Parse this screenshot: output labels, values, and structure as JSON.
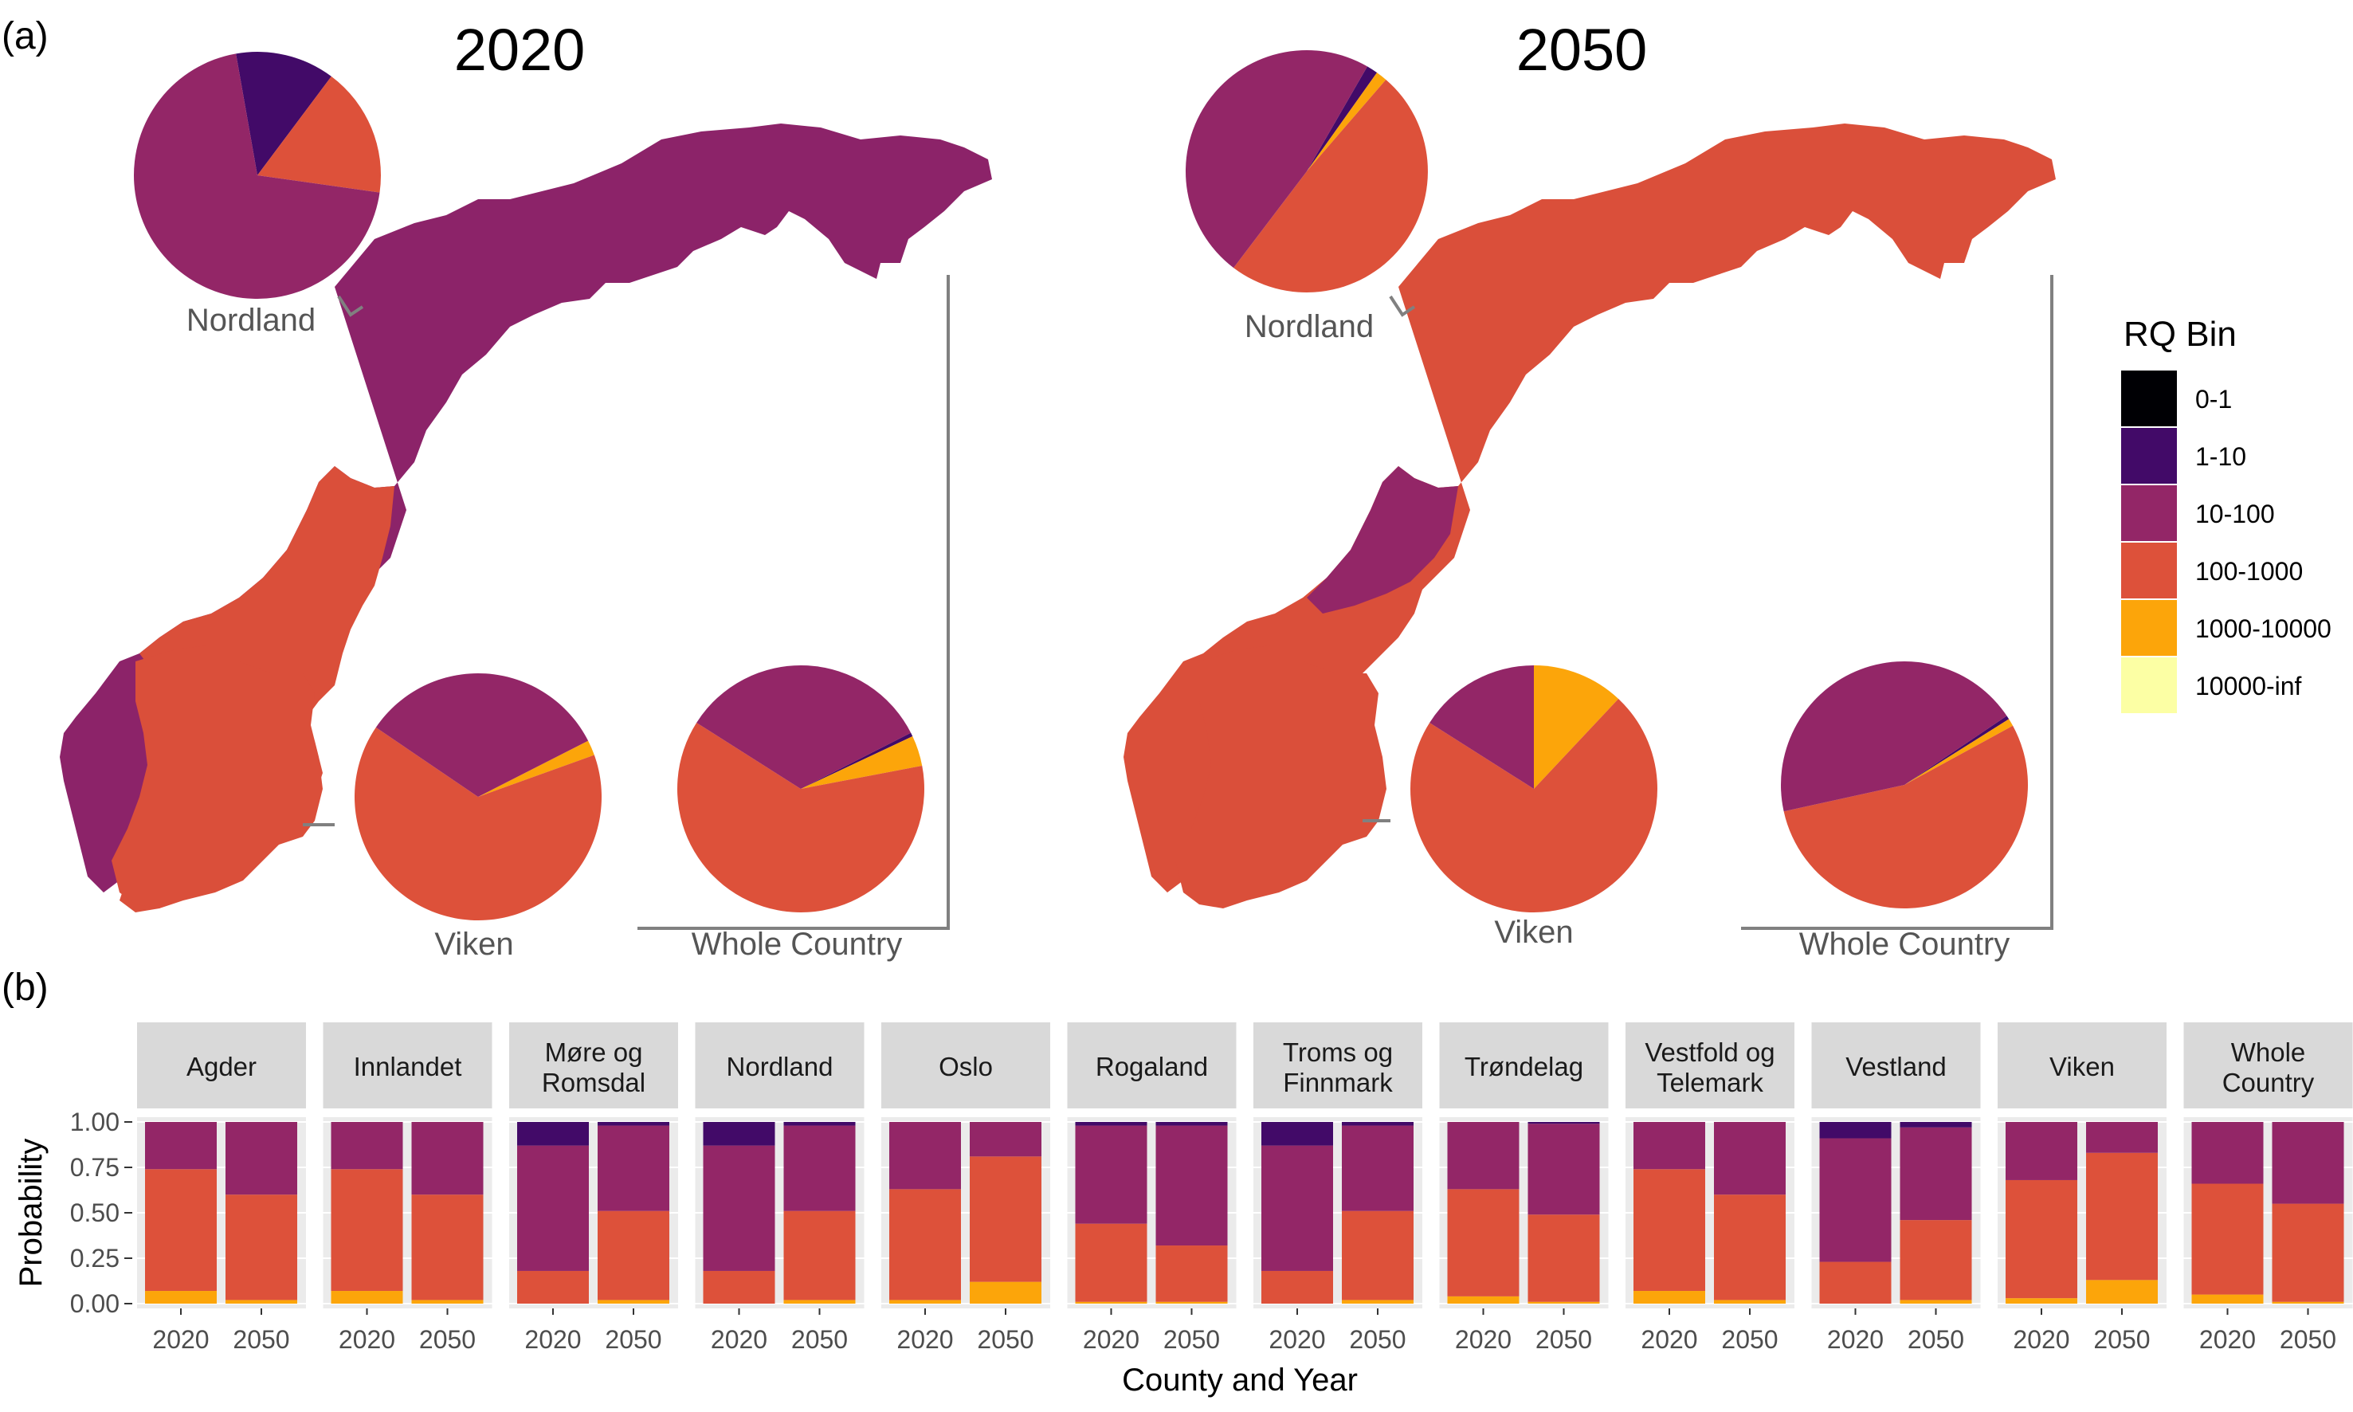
{
  "panels": {
    "a_tag": "(a)",
    "b_tag": "(b)"
  },
  "maps": [
    {
      "title": "2020",
      "county_fill": {
        "north": "#8C2369",
        "south": "#DA4F3A"
      }
    },
    {
      "title": "2050",
      "county_fill": {
        "north": "#DA4F3A",
        "south": "#DA4F3A"
      }
    }
  ],
  "legend": {
    "title": "RQ Bin",
    "items": [
      {
        "label": "0-1",
        "color": "#000004"
      },
      {
        "label": "1-10",
        "color": "#420A68"
      },
      {
        "label": "10-100",
        "color": "#932667"
      },
      {
        "label": "100-1000",
        "color": "#DD513A"
      },
      {
        "label": "1000-10000",
        "color": "#FCA50A"
      },
      {
        "label": "10000-inf",
        "color": "#FCFFA4"
      }
    ]
  },
  "chart_data": [
    {
      "type": "pie",
      "panel": "a",
      "map": "2020",
      "pies": [
        {
          "label": "Nordland",
          "slices": [
            {
              "bin": "1-10",
              "value": 0.13
            },
            {
              "bin": "100-1000",
              "value": 0.17
            },
            {
              "bin": "10-100",
              "value": 0.7
            }
          ]
        },
        {
          "label": "Viken",
          "slices": [
            {
              "bin": "1000-10000",
              "value": 0.02
            },
            {
              "bin": "100-1000",
              "value": 0.65
            },
            {
              "bin": "10-100",
              "value": 0.33
            }
          ]
        },
        {
          "label": "Whole Country",
          "slices": [
            {
              "bin": "1-10",
              "value": 0.005
            },
            {
              "bin": "1000-10000",
              "value": 0.04
            },
            {
              "bin": "100-1000",
              "value": 0.62
            },
            {
              "bin": "10-100",
              "value": 0.335
            }
          ]
        }
      ]
    },
    {
      "type": "pie",
      "panel": "a",
      "map": "2050",
      "pies": [
        {
          "label": "Nordland",
          "slices": [
            {
              "bin": "1-10",
              "value": 0.015
            },
            {
              "bin": "1000-10000",
              "value": 0.015
            },
            {
              "bin": "100-1000",
              "value": 0.49
            },
            {
              "bin": "10-100",
              "value": 0.48
            }
          ]
        },
        {
          "label": "Viken",
          "slices": [
            {
              "bin": "1000-10000",
              "value": 0.12
            },
            {
              "bin": "100-1000",
              "value": 0.72
            },
            {
              "bin": "10-100",
              "value": 0.16
            }
          ]
        },
        {
          "label": "Whole Country",
          "slices": [
            {
              "bin": "1-10",
              "value": 0.005
            },
            {
              "bin": "1000-10000",
              "value": 0.01
            },
            {
              "bin": "100-1000",
              "value": 0.545
            },
            {
              "bin": "10-100",
              "value": 0.44
            }
          ]
        }
      ]
    },
    {
      "type": "bar",
      "panel": "b",
      "stacked": true,
      "xlabel": "County and Year",
      "ylabel": "Probability",
      "ylim": [
        0,
        1
      ],
      "yticks": [
        "0.00",
        "0.25",
        "0.50",
        "0.75",
        "1.00"
      ],
      "grid": true,
      "stack_order": [
        "1000-10000",
        "100-1000",
        "10-100",
        "1-10"
      ],
      "facets": [
        {
          "name": "Agder",
          "bars": [
            {
              "year": "2020",
              "values": [
                0.07,
                0.67,
                0.26,
                0.0
              ]
            },
            {
              "year": "2050",
              "values": [
                0.02,
                0.58,
                0.4,
                0.0
              ]
            }
          ]
        },
        {
          "name": "Innlandet",
          "bars": [
            {
              "year": "2020",
              "values": [
                0.07,
                0.67,
                0.26,
                0.0
              ]
            },
            {
              "year": "2050",
              "values": [
                0.02,
                0.58,
                0.4,
                0.0
              ]
            }
          ]
        },
        {
          "name": "Møre og Romsdal",
          "bars": [
            {
              "year": "2020",
              "values": [
                0.0,
                0.18,
                0.69,
                0.13
              ]
            },
            {
              "year": "2050",
              "values": [
                0.02,
                0.49,
                0.47,
                0.02
              ]
            }
          ]
        },
        {
          "name": "Nordland",
          "bars": [
            {
              "year": "2020",
              "values": [
                0.0,
                0.18,
                0.69,
                0.13
              ]
            },
            {
              "year": "2050",
              "values": [
                0.02,
                0.49,
                0.47,
                0.02
              ]
            }
          ]
        },
        {
          "name": "Oslo",
          "bars": [
            {
              "year": "2020",
              "values": [
                0.02,
                0.61,
                0.37,
                0.0
              ]
            },
            {
              "year": "2050",
              "values": [
                0.12,
                0.69,
                0.19,
                0.0
              ]
            }
          ]
        },
        {
          "name": "Rogaland",
          "bars": [
            {
              "year": "2020",
              "values": [
                0.01,
                0.43,
                0.54,
                0.02
              ]
            },
            {
              "year": "2050",
              "values": [
                0.01,
                0.31,
                0.66,
                0.02
              ]
            }
          ]
        },
        {
          "name": "Troms og Finnmark",
          "bars": [
            {
              "year": "2020",
              "values": [
                0.0,
                0.18,
                0.69,
                0.13
              ]
            },
            {
              "year": "2050",
              "values": [
                0.02,
                0.49,
                0.47,
                0.02
              ]
            }
          ]
        },
        {
          "name": "Trøndelag",
          "bars": [
            {
              "year": "2020",
              "values": [
                0.04,
                0.59,
                0.37,
                0.0
              ]
            },
            {
              "year": "2050",
              "values": [
                0.01,
                0.48,
                0.5,
                0.01
              ]
            }
          ]
        },
        {
          "name": "Vestfold og Telemark",
          "bars": [
            {
              "year": "2020",
              "values": [
                0.07,
                0.67,
                0.26,
                0.0
              ]
            },
            {
              "year": "2050",
              "values": [
                0.02,
                0.58,
                0.4,
                0.0
              ]
            }
          ]
        },
        {
          "name": "Vestland",
          "bars": [
            {
              "year": "2020",
              "values": [
                0.0,
                0.23,
                0.68,
                0.09
              ]
            },
            {
              "year": "2050",
              "values": [
                0.02,
                0.44,
                0.51,
                0.03
              ]
            }
          ]
        },
        {
          "name": "Viken",
          "bars": [
            {
              "year": "2020",
              "values": [
                0.03,
                0.65,
                0.32,
                0.0
              ]
            },
            {
              "year": "2050",
              "values": [
                0.13,
                0.7,
                0.17,
                0.0
              ]
            }
          ]
        },
        {
          "name": "Whole Country",
          "bars": [
            {
              "year": "2020",
              "values": [
                0.05,
                0.61,
                0.34,
                0.0
              ]
            },
            {
              "year": "2050",
              "values": [
                0.01,
                0.54,
                0.45,
                0.0
              ]
            }
          ]
        }
      ]
    }
  ]
}
